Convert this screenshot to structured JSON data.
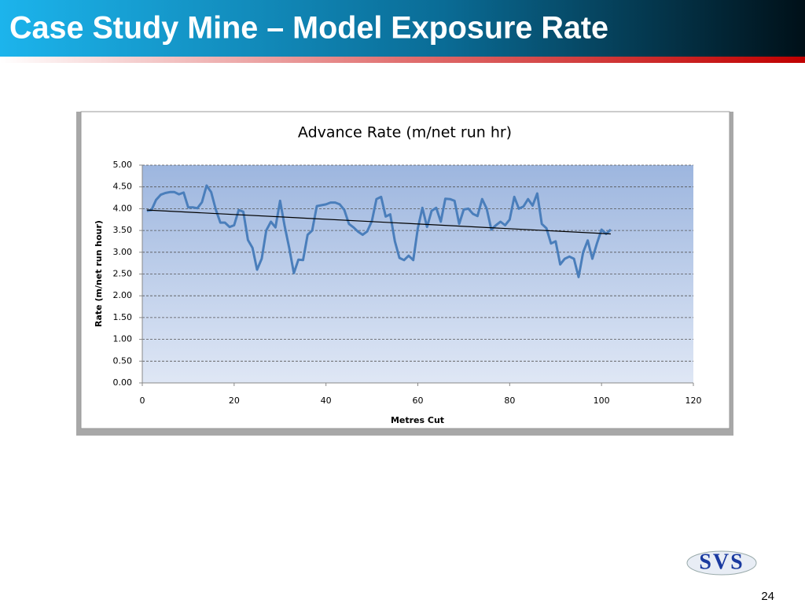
{
  "slide": {
    "title": "Case Study Mine – Model Exposure Rate",
    "logo": "SVS",
    "page_number": "24"
  },
  "chart_data": {
    "type": "line",
    "title": "Advance Rate (m/net run hr)",
    "x_label": "Metres  Cut",
    "y_label": "Rate (m/net run hour)",
    "x": [
      1,
      2,
      3,
      4,
      5,
      6,
      7,
      8,
      9,
      10,
      11,
      12,
      13,
      14,
      15,
      16,
      17,
      18,
      19,
      20,
      21,
      22,
      23,
      24,
      25,
      26,
      27,
      28,
      29,
      30,
      31,
      32,
      33,
      34,
      35,
      36,
      37,
      38,
      39,
      40,
      41,
      42,
      43,
      44,
      45,
      46,
      47,
      48,
      49,
      50,
      51,
      52,
      53,
      54,
      55,
      56,
      57,
      58,
      59,
      60,
      61,
      62,
      63,
      64,
      65,
      66,
      67,
      68,
      69,
      70,
      71,
      72,
      73,
      74,
      75,
      76,
      77,
      78,
      79,
      80,
      81,
      82,
      83,
      84,
      85,
      86,
      87,
      88,
      89,
      90,
      91,
      92,
      93,
      94,
      95,
      96,
      97,
      98,
      99,
      100,
      101,
      102
    ],
    "series": [
      {
        "color": "#4a7ebb",
        "values": [
          3.95,
          3.97,
          4.2,
          4.32,
          4.36,
          4.38,
          4.38,
          4.33,
          4.37,
          4.03,
          4.03,
          4.01,
          4.15,
          4.53,
          4.38,
          3.98,
          3.68,
          3.68,
          3.58,
          3.62,
          3.97,
          3.93,
          3.28,
          3.1,
          2.6,
          2.85,
          3.5,
          3.7,
          3.57,
          4.18,
          3.6,
          3.1,
          2.52,
          2.83,
          2.82,
          3.4,
          3.5,
          4.06,
          4.08,
          4.1,
          4.14,
          4.14,
          4.1,
          3.97,
          3.65,
          3.57,
          3.47,
          3.4,
          3.48,
          3.72,
          4.22,
          4.27,
          3.82,
          3.87,
          3.25,
          2.87,
          2.82,
          2.92,
          2.82,
          3.55,
          4.02,
          3.58,
          3.95,
          4.02,
          3.7,
          4.23,
          4.22,
          4.18,
          3.65,
          3.98,
          4.0,
          3.88,
          3.83,
          4.22,
          4.0,
          3.52,
          3.62,
          3.7,
          3.62,
          3.75,
          4.27,
          4.0,
          4.05,
          4.22,
          4.07,
          4.35,
          3.65,
          3.55,
          3.2,
          3.25,
          2.72,
          2.85,
          2.9,
          2.85,
          2.43,
          3.0,
          3.27,
          2.85,
          3.2,
          3.52,
          3.42,
          3.52
        ]
      }
    ],
    "trendline": {
      "color": "#000000",
      "x": [
        1,
        102
      ],
      "values": [
        3.97,
        3.42
      ]
    },
    "xlim": [
      0,
      120
    ],
    "xticks": [
      0,
      20,
      40,
      60,
      80,
      100,
      120
    ],
    "ylim": [
      0,
      5
    ],
    "yticks": [
      {
        "value": 0,
        "label": "0.00"
      },
      {
        "value": 0.5,
        "label": "0.50"
      },
      {
        "value": 1,
        "label": "1.00"
      },
      {
        "value": 1.5,
        "label": "1.50"
      },
      {
        "value": 2,
        "label": "2.00"
      },
      {
        "value": 2.5,
        "label": "2.50"
      },
      {
        "value": 3,
        "label": "3.00"
      },
      {
        "value": 3.5,
        "label": "3.50"
      },
      {
        "value": 4,
        "label": "4.00"
      },
      {
        "value": 4.5,
        "label": "4.50"
      },
      {
        "value": 5,
        "label": "5.00"
      }
    ],
    "grid": true
  }
}
